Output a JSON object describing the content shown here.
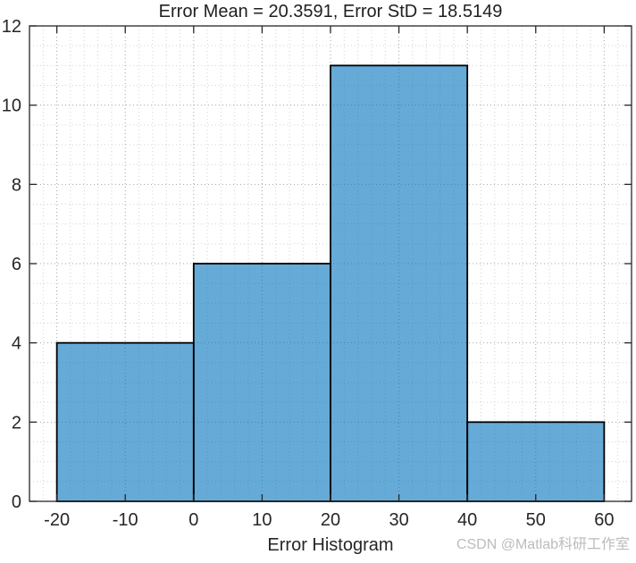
{
  "watermark": "CSDN @Matlab科研工作室",
  "chart_data": {
    "type": "bar",
    "subtype": "histogram",
    "title": "Error Mean = 20.3591, Error StD = 18.5149",
    "xlabel": "Error Histogram",
    "ylabel": "",
    "error_mean": 20.3591,
    "error_std": 18.5149,
    "bin_edges": [
      -20,
      0,
      20,
      40,
      60
    ],
    "counts": [
      4,
      6,
      11,
      2
    ],
    "xticks": [
      -20,
      -10,
      0,
      10,
      20,
      30,
      40,
      50,
      60
    ],
    "yticks": [
      0,
      2,
      4,
      6,
      8,
      10,
      12
    ],
    "xlim": [
      -24,
      64
    ],
    "ylim": [
      0,
      12
    ],
    "minor_x_step": 2,
    "minor_y_step": 0.5,
    "grid": "major and minor, dotted, shown behind bars",
    "legend_position": "none",
    "bar_face_color": "#0072BD",
    "bar_face_alpha": 0.6,
    "bar_edge_color": "#000000",
    "axis_color": "#262626",
    "major_grid_color": "#a3a3a3",
    "minor_grid_color": "#d2d2d2"
  }
}
